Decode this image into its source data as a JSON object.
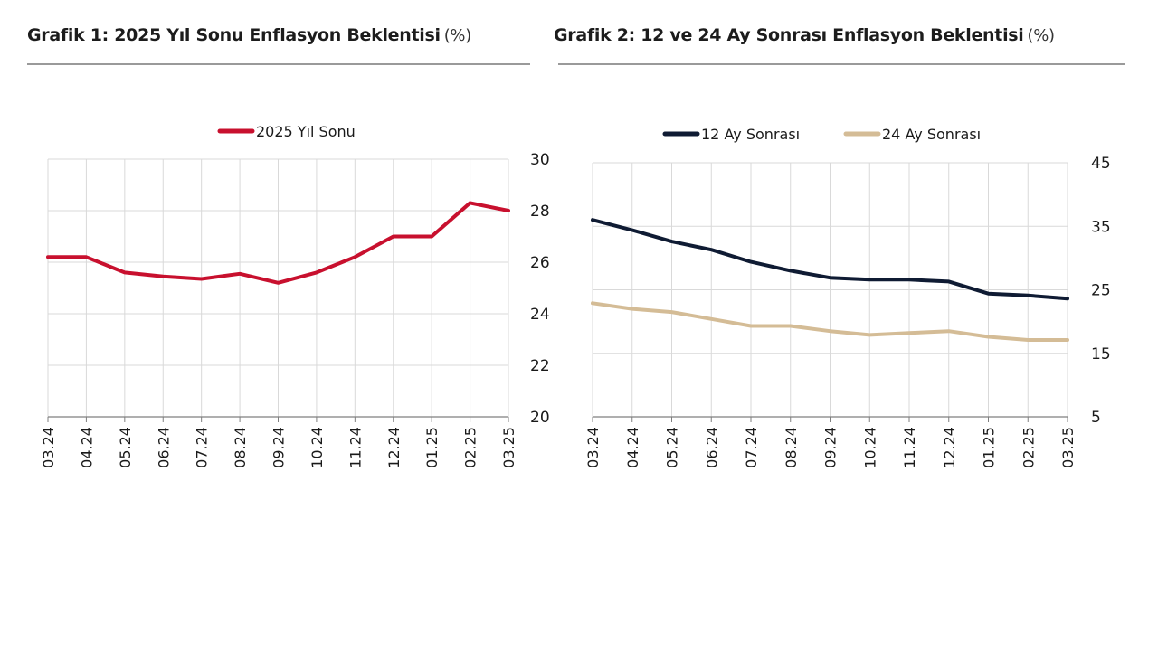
{
  "chart_data": [
    {
      "type": "line",
      "title": "Grafik 1: 2025 Yıl Sonu Enflasyon Beklentisi",
      "unit": "(%)",
      "categories": [
        "03.24",
        "04.24",
        "05.24",
        "06.24",
        "07.24",
        "08.24",
        "09.24",
        "10.24",
        "11.24",
        "12.24",
        "01.25",
        "02.25",
        "03.25"
      ],
      "series": [
        {
          "name": "2025 Yıl Sonu",
          "color": "#c8102e",
          "values": [
            26.2,
            26.2,
            25.6,
            25.45,
            25.35,
            25.55,
            25.2,
            25.6,
            26.2,
            27.0,
            27.0,
            28.3,
            28.0
          ]
        }
      ],
      "ylim": [
        20,
        30
      ],
      "yticks": [
        20,
        22,
        24,
        26,
        28,
        30
      ],
      "yaxis_side": "right",
      "legend_position": "top-center",
      "grid": true
    },
    {
      "type": "line",
      "title": "Grafik 2: 12 ve 24 Ay Sonrası Enflasyon Beklentisi",
      "unit": "(%)",
      "categories": [
        "03.24",
        "04.24",
        "05.24",
        "06.24",
        "07.24",
        "08.24",
        "09.24",
        "10.24",
        "11.24",
        "12.24",
        "01.25",
        "02.25",
        "03.25"
      ],
      "series": [
        {
          "name": "12 Ay Sonrası",
          "color": "#0f1b33",
          "values": [
            36.0,
            34.4,
            32.6,
            31.3,
            29.4,
            28.0,
            26.9,
            26.6,
            26.6,
            26.3,
            24.4,
            24.1,
            23.6
          ]
        },
        {
          "name": "24 Ay Sonrası",
          "color": "#d4bc96",
          "values": [
            22.9,
            22.0,
            21.5,
            20.4,
            19.3,
            19.3,
            18.5,
            17.9,
            18.2,
            18.5,
            17.6,
            17.1,
            17.1
          ]
        }
      ],
      "ylim": [
        5,
        45
      ],
      "yticks": [
        5,
        15,
        25,
        35,
        45
      ],
      "yaxis_side": "right",
      "legend_position": "top-center",
      "grid": true
    }
  ]
}
